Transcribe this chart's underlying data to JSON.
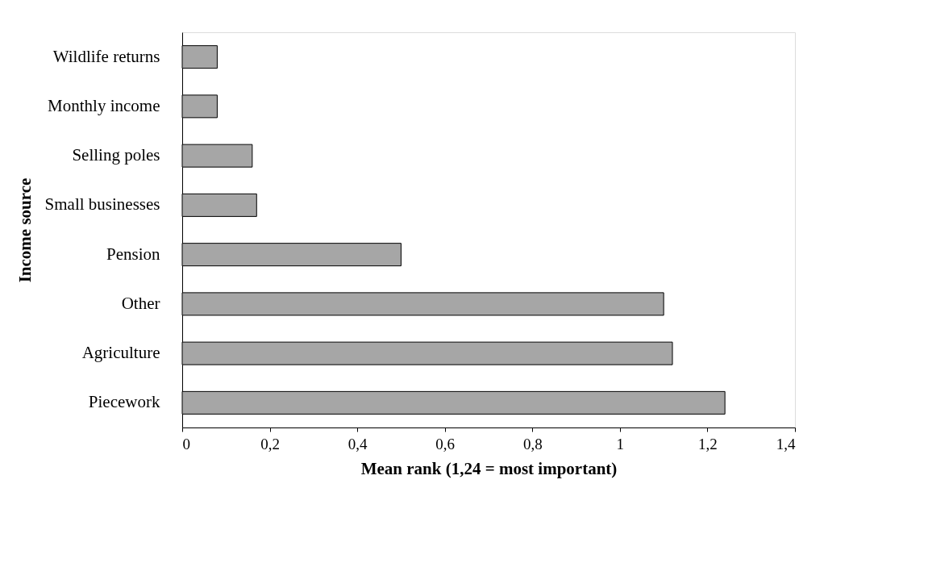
{
  "chart_data": {
    "type": "bar",
    "orientation": "horizontal",
    "xlabel": "Mean rank (1,24 = most important)",
    "ylabel": "Income source",
    "categories": [
      "Wildlife returns",
      "Monthly income",
      "Selling poles",
      "Small businesses",
      "Pension",
      "Other",
      "Agriculture",
      "Piecework"
    ],
    "values": [
      0.08,
      0.08,
      0.16,
      0.17,
      0.5,
      1.1,
      1.12,
      1.24
    ],
    "color": "#a6a6a6",
    "xlim": [
      0,
      1.4
    ],
    "xticks": [
      0,
      {
        "value": 0.2,
        "label": "0,2"
      },
      {
        "value": 0.4,
        "label": "0,4"
      },
      {
        "value": 0.6,
        "label": "0,6"
      },
      {
        "value": 0.8,
        "label": "0,8"
      },
      1,
      {
        "value": 1.2,
        "label": "1,2"
      },
      {
        "value": 1.4,
        "label": "1,4"
      }
    ],
    "grid": false
  }
}
